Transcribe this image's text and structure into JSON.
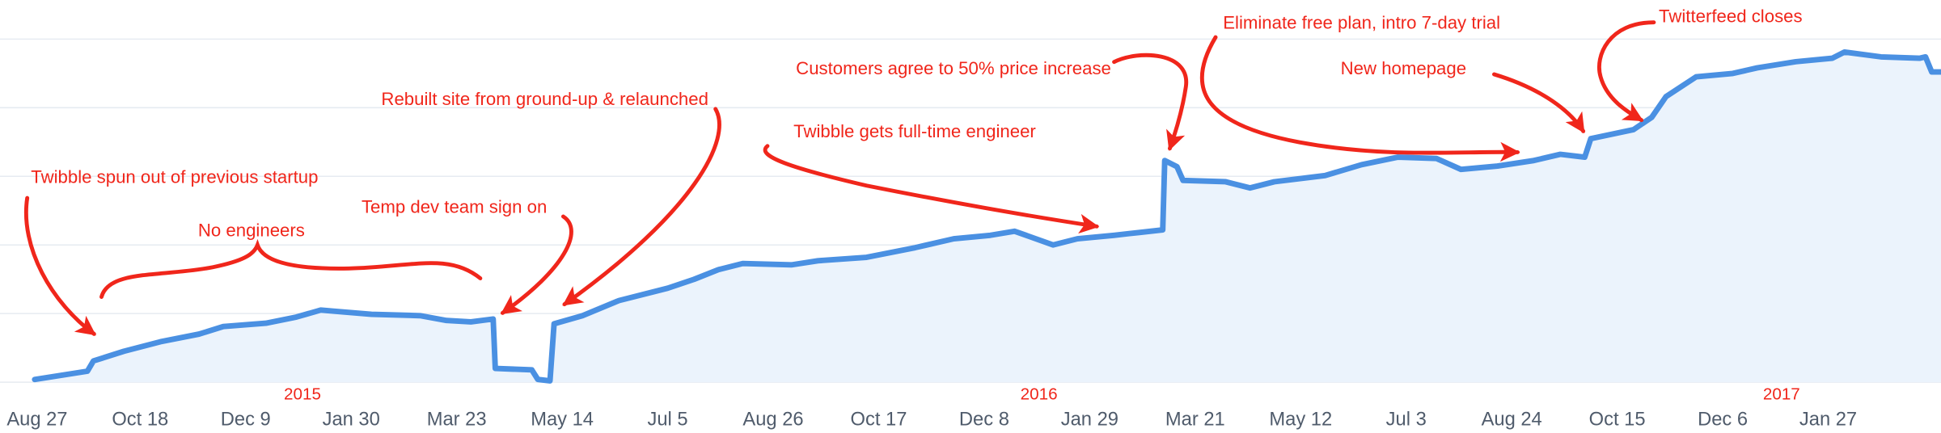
{
  "chart_data": {
    "type": "area",
    "title": "",
    "xlabel": "",
    "ylabel": "",
    "x_unit": "days since Aug 27, 2014",
    "y_unit": "relative (gridline units)",
    "ylim": [
      0,
      5
    ],
    "grid": true,
    "colors": {
      "line": "#4a90e2",
      "fill": "#ebf3fc",
      "grid": "#e6ebf1",
      "annotation": "#f0261b",
      "tick": "#4f5b6b"
    },
    "x_ticks": [
      {
        "day": 0,
        "label": "Aug 27"
      },
      {
        "day": 52,
        "label": "Oct 18"
      },
      {
        "day": 104,
        "label": "Dec 9"
      },
      {
        "day": 156,
        "label": "Jan 30"
      },
      {
        "day": 208,
        "label": "Mar 23"
      },
      {
        "day": 260,
        "label": "May 14"
      },
      {
        "day": 312,
        "label": "Jul 5"
      },
      {
        "day": 364,
        "label": "Aug 26"
      },
      {
        "day": 416,
        "label": "Oct 17"
      },
      {
        "day": 468,
        "label": "Dec 8"
      },
      {
        "day": 520,
        "label": "Jan 29"
      },
      {
        "day": 572,
        "label": "Mar 21"
      },
      {
        "day": 624,
        "label": "May 12"
      },
      {
        "day": 676,
        "label": "Jul 3"
      },
      {
        "day": 728,
        "label": "Aug 24"
      },
      {
        "day": 780,
        "label": "Oct 15"
      },
      {
        "day": 832,
        "label": "Dec 6"
      },
      {
        "day": 884,
        "label": "Jan 27"
      }
    ],
    "year_labels": [
      {
        "day": 132,
        "label": "2015"
      },
      {
        "day": 495,
        "label": "2016"
      },
      {
        "day": 861,
        "label": "2017"
      }
    ],
    "points": [
      [
        0,
        0.04
      ],
      [
        26,
        0.16
      ],
      [
        29,
        0.31
      ],
      [
        44,
        0.45
      ],
      [
        62,
        0.59
      ],
      [
        81,
        0.7
      ],
      [
        93,
        0.81
      ],
      [
        114,
        0.86
      ],
      [
        129,
        0.95
      ],
      [
        141,
        1.05
      ],
      [
        166,
        0.99
      ],
      [
        190,
        0.97
      ],
      [
        203,
        0.9
      ],
      [
        215,
        0.88
      ],
      [
        226,
        0.92
      ],
      [
        227,
        0.2
      ],
      [
        245,
        0.18
      ],
      [
        248,
        0.04
      ],
      [
        254,
        0.02
      ],
      [
        256,
        0.85
      ],
      [
        270,
        0.97
      ],
      [
        288,
        1.19
      ],
      [
        312,
        1.37
      ],
      [
        325,
        1.5
      ],
      [
        337,
        1.64
      ],
      [
        349,
        1.73
      ],
      [
        373,
        1.71
      ],
      [
        386,
        1.77
      ],
      [
        410,
        1.82
      ],
      [
        434,
        1.96
      ],
      [
        453,
        2.09
      ],
      [
        471,
        2.14
      ],
      [
        483,
        2.2
      ],
      [
        502,
        2.0
      ],
      [
        514,
        2.09
      ],
      [
        532,
        2.14
      ],
      [
        544,
        2.18
      ],
      [
        556,
        2.22
      ],
      [
        557,
        3.23
      ],
      [
        563,
        3.14
      ],
      [
        566,
        2.94
      ],
      [
        587,
        2.92
      ],
      [
        599,
        2.83
      ],
      [
        611,
        2.92
      ],
      [
        636,
        3.01
      ],
      [
        654,
        3.17
      ],
      [
        672,
        3.28
      ],
      [
        691,
        3.26
      ],
      [
        703,
        3.1
      ],
      [
        721,
        3.15
      ],
      [
        739,
        3.23
      ],
      [
        752,
        3.32
      ],
      [
        764,
        3.28
      ],
      [
        767,
        3.55
      ],
      [
        788,
        3.68
      ],
      [
        797,
        3.86
      ],
      [
        804,
        4.16
      ],
      [
        819,
        4.45
      ],
      [
        837,
        4.5
      ],
      [
        849,
        4.58
      ],
      [
        868,
        4.67
      ],
      [
        886,
        4.72
      ],
      [
        892,
        4.81
      ],
      [
        910,
        4.74
      ],
      [
        929,
        4.72
      ],
      [
        932,
        4.74
      ],
      [
        935,
        4.52
      ],
      [
        940,
        4.52
      ]
    ],
    "annotations": [
      {
        "label": "Twibble spun out of previous startup"
      },
      {
        "label": "No engineers"
      },
      {
        "label": "Temp dev team sign on"
      },
      {
        "label": "Rebuilt site from ground-up & relaunched"
      },
      {
        "label": "Twibble gets full-time engineer"
      },
      {
        "label": "Customers agree to 50% price increase"
      },
      {
        "label": "Eliminate free plan, intro 7-day trial"
      },
      {
        "label": "New homepage"
      },
      {
        "label": "Twitterfeed closes"
      }
    ]
  }
}
